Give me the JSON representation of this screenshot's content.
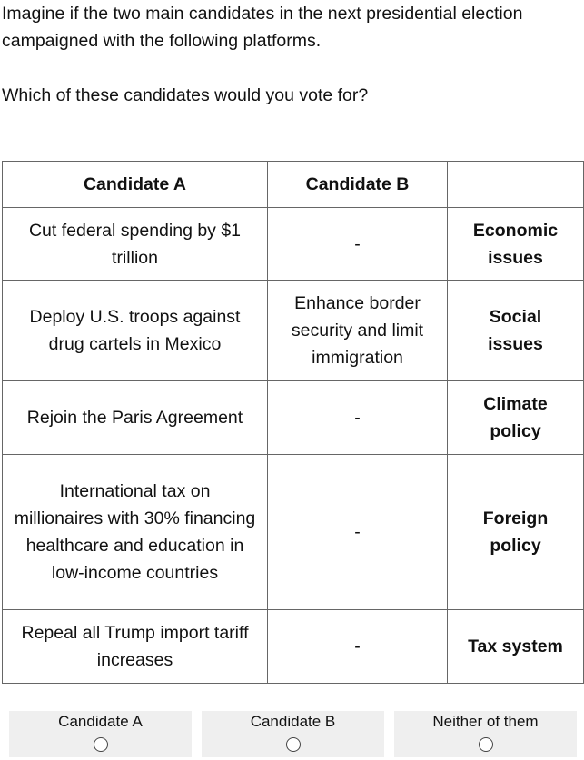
{
  "intro": {
    "text": "Imagine if the two main candidates in the next presidential election campaigned with the following platforms.",
    "question": "Which of these candidates would you vote for?"
  },
  "table": {
    "headers": [
      "Candidate A",
      "Candidate B",
      ""
    ],
    "rows": [
      {
        "candidate_a": "Cut federal spending by $1 trillion",
        "candidate_b": "-",
        "topic": "Economic issues"
      },
      {
        "candidate_a": "Deploy U.S. troops against drug cartels in Mexico",
        "candidate_b": "Enhance border security and limit immigration",
        "topic": "Social issues"
      },
      {
        "candidate_a": "Rejoin the Paris Agreement",
        "candidate_b": "-",
        "topic": "Climate policy"
      },
      {
        "candidate_a": "International tax on millionaires with 30% financing healthcare and education in low-income countries",
        "candidate_b": "-",
        "topic": "Foreign policy"
      },
      {
        "candidate_a": "Repeal all Trump import tariff increases",
        "candidate_b": "-",
        "topic": "Tax system"
      }
    ]
  },
  "choices": [
    {
      "label": "Candidate A",
      "selected": false
    },
    {
      "label": "Candidate B",
      "selected": false
    },
    {
      "label": "Neither of them",
      "selected": false
    }
  ]
}
